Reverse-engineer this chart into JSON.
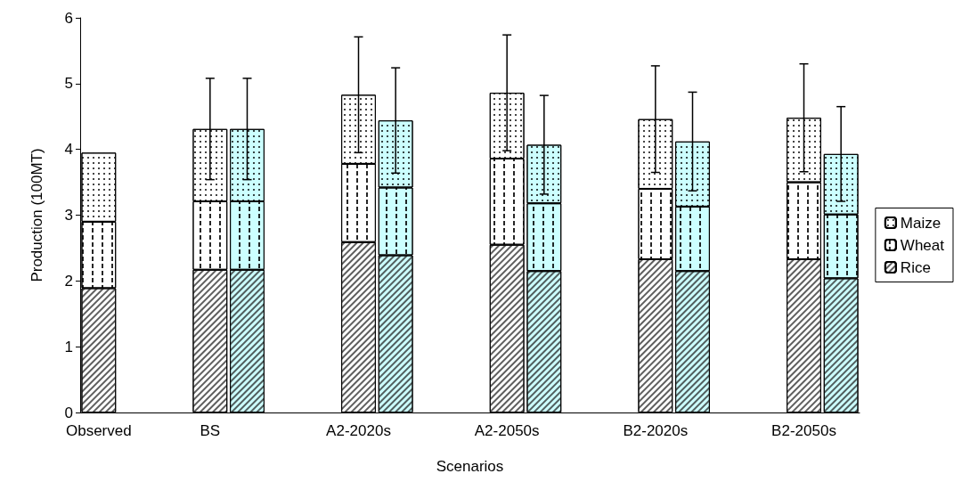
{
  "chart_data": {
    "type": "bar",
    "stacked": true,
    "xlabel": "Scenarios",
    "ylabel": "Production (100MT)",
    "categories": [
      "Observed",
      null,
      null,
      "BS",
      null,
      null,
      null,
      "A2-2020s",
      null,
      null,
      null,
      "A2-2050s",
      null,
      null,
      null,
      "B2-2020s",
      null,
      null,
      null,
      "B2-2050s",
      null
    ],
    "ylim": [
      0,
      6
    ],
    "yticks": [
      0,
      1,
      2,
      3,
      4,
      5,
      6
    ],
    "grid": false,
    "legend": "right",
    "series": [
      {
        "name": "Rice",
        "colors": [
          "#ffffff",
          "#ffffff",
          "#ffffff",
          "#ffffff",
          "#ccffff",
          "#ffffff",
          "#ffffff",
          "#ffffff",
          "#ccffff",
          "#ffffff",
          "#ffffff",
          "#ffffff",
          "#ccffff",
          "#ffffff",
          "#ffffff",
          "#ffffff",
          "#ccffff",
          "#ffffff",
          "#ffffff",
          "#ffffff",
          "#ccffff"
        ],
        "values": [
          1.89,
          null,
          null,
          2.17,
          2.17,
          null,
          null,
          2.59,
          2.39,
          null,
          null,
          2.55,
          2.15,
          null,
          null,
          2.33,
          2.15,
          null,
          null,
          2.33,
          2.04
        ]
      },
      {
        "name": "Wheat",
        "colors": [
          "#ffffff",
          "#ffffff",
          "#ffffff",
          "#ffffff",
          "#ccffff",
          "#ffffff",
          "#ffffff",
          "#ffffff",
          "#ccffff",
          "#ffffff",
          "#ffffff",
          "#ffffff",
          "#ccffff",
          "#ffffff",
          "#ffffff",
          "#ffffff",
          "#ccffff",
          "#ffffff",
          "#ffffff",
          "#ffffff",
          "#ccffff"
        ],
        "values": [
          1.01,
          null,
          null,
          1.04,
          1.04,
          null,
          null,
          1.19,
          1.03,
          null,
          null,
          1.31,
          1.03,
          null,
          null,
          1.07,
          0.98,
          null,
          null,
          1.17,
          0.97
        ]
      },
      {
        "name": "Maize",
        "colors": [
          "#ffffff",
          "#ffffff",
          "#ffffff",
          "#ffffff",
          "#ccffff",
          "#ffffff",
          "#ffffff",
          "#ffffff",
          "#ccffff",
          "#ffffff",
          "#ffffff",
          "#ffffff",
          "#ccffff",
          "#ffffff",
          "#ffffff",
          "#ffffff",
          "#ccffff",
          "#ffffff",
          "#ffffff",
          "#ffffff",
          "#ccffff"
        ],
        "values": [
          1.05,
          null,
          null,
          1.1,
          1.1,
          null,
          null,
          1.05,
          1.02,
          null,
          null,
          1.0,
          0.89,
          null,
          null,
          1.06,
          0.99,
          null,
          null,
          0.98,
          0.92
        ],
        "errors": [
          null,
          null,
          null,
          0.77,
          0.77,
          null,
          null,
          0.88,
          0.8,
          null,
          null,
          0.88,
          0.75,
          null,
          null,
          0.81,
          0.75,
          null,
          null,
          0.82,
          0.72
        ]
      }
    ]
  }
}
